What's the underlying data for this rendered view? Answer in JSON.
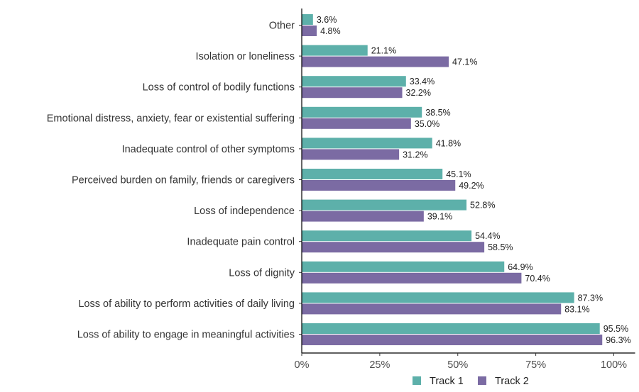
{
  "chart_data": {
    "type": "bar",
    "orientation": "horizontal",
    "categories": [
      "Other",
      "Isolation or loneliness",
      "Loss of control of bodily functions",
      "Emotional distress, anxiety, fear or existential suffering",
      "Inadequate control of other symptoms",
      "Perceived burden on family, friends or caregivers",
      "Loss of independence",
      "Inadequate pain control",
      "Loss of dignity",
      "Loss of ability to perform activities of daily living",
      "Loss of ability to engage in meaningful activities"
    ],
    "series": [
      {
        "name": "Track 1",
        "color": "#5db0aa",
        "values": [
          3.6,
          21.1,
          33.4,
          38.5,
          41.8,
          45.1,
          52.8,
          54.4,
          64.9,
          87.3,
          95.5
        ],
        "labels": [
          "3.6%",
          "21.1%",
          "33.4%",
          "38.5%",
          "41.8%",
          "45.1%",
          "52.8%",
          "54.4%",
          "64.9%",
          "87.3%",
          "95.5%"
        ]
      },
      {
        "name": "Track 2",
        "color": "#7b6ba3",
        "values": [
          4.8,
          47.1,
          32.2,
          35.0,
          31.2,
          49.2,
          39.1,
          58.5,
          70.4,
          83.1,
          96.3
        ],
        "labels": [
          "4.8%",
          "47.1%",
          "32.2%",
          "35.0%",
          "31.2%",
          "49.2%",
          "39.1%",
          "58.5%",
          "70.4%",
          "83.1%",
          "96.3%"
        ]
      }
    ],
    "xlim": [
      0,
      100
    ],
    "xticks": [
      0,
      25,
      50,
      75,
      100
    ],
    "xtick_labels": [
      "0%",
      "25%",
      "50%",
      "75%",
      "100%"
    ],
    "title": "",
    "xlabel": "",
    "ylabel": "",
    "grid": false,
    "legend_position": "bottom"
  }
}
